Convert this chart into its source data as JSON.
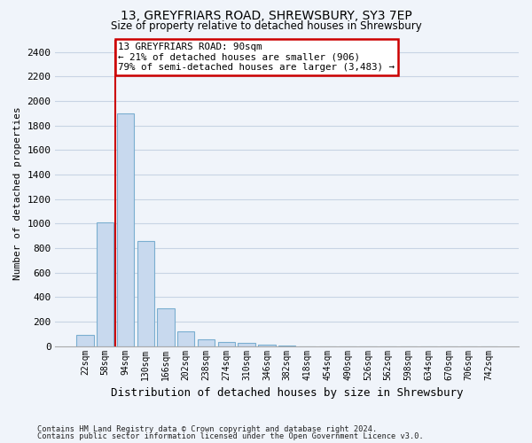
{
  "title1": "13, GREYFRIARS ROAD, SHREWSBURY, SY3 7EP",
  "title2": "Size of property relative to detached houses in Shrewsbury",
  "xlabel": "Distribution of detached houses by size in Shrewsbury",
  "ylabel": "Number of detached properties",
  "bar_color": "#c8d9ee",
  "bar_edge_color": "#7aaed0",
  "bin_labels": [
    "22sqm",
    "58sqm",
    "94sqm",
    "130sqm",
    "166sqm",
    "202sqm",
    "238sqm",
    "274sqm",
    "310sqm",
    "346sqm",
    "382sqm",
    "418sqm",
    "454sqm",
    "490sqm",
    "526sqm",
    "562sqm",
    "598sqm",
    "634sqm",
    "670sqm",
    "706sqm",
    "742sqm"
  ],
  "bar_heights": [
    90,
    1010,
    1900,
    860,
    310,
    120,
    55,
    35,
    25,
    10,
    5,
    0,
    0,
    0,
    0,
    0,
    0,
    0,
    0,
    0,
    0
  ],
  "annotation_text": "13 GREYFRIARS ROAD: 90sqm\n← 21% of detached houses are smaller (906)\n79% of semi-detached houses are larger (3,483) →",
  "annotation_box_facecolor": "white",
  "annotation_box_edgecolor": "#cc0000",
  "vline_color": "#cc0000",
  "vline_x": 1.5,
  "ylim": [
    0,
    2500
  ],
  "yticks": [
    0,
    200,
    400,
    600,
    800,
    1000,
    1200,
    1400,
    1600,
    1800,
    2000,
    2200,
    2400
  ],
  "grid_color": "#c8d4e4",
  "background_color": "#f0f4fa",
  "footer1": "Contains HM Land Registry data © Crown copyright and database right 2024.",
  "footer2": "Contains public sector information licensed under the Open Government Licence v3.0."
}
